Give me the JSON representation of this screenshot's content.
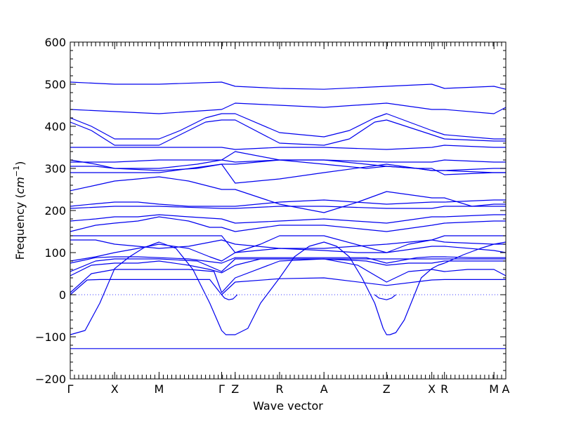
{
  "chart_data": {
    "type": "line",
    "title": "",
    "xlabel": "Wave vector",
    "ylabel": "Frequency (cm⁻¹)",
    "ylabel_text": "Frequency (",
    "ylabel_unit": "cm",
    "ylabel_exp": "−1",
    "ylabel_close": ")",
    "ylim": [
      -200,
      600
    ],
    "yticks": [
      -200,
      -100,
      0,
      100,
      200,
      300,
      400,
      500,
      600
    ],
    "ytick_labels": [
      "−200",
      "−100",
      "0",
      "100",
      "200",
      "300",
      "400",
      "500",
      "600"
    ],
    "xlim": [
      0,
      10.3
    ],
    "xticks": [
      {
        "x": 0.0,
        "label": "Γ"
      },
      {
        "x": 1.05,
        "label": "X"
      },
      {
        "x": 2.1,
        "label": "M"
      },
      {
        "x": 3.58,
        "label": "Γ"
      },
      {
        "x": 3.9,
        "label": "Z"
      },
      {
        "x": 4.95,
        "label": "R"
      },
      {
        "x": 6.0,
        "label": "A"
      },
      {
        "x": 7.48,
        "label": "Z"
      },
      {
        "x": 8.55,
        "label": "X"
      },
      {
        "x": 8.85,
        "label": "R"
      },
      {
        "x": 10.02,
        "label": "M"
      },
      {
        "x": 10.3,
        "label": "A"
      }
    ],
    "zero_line": true,
    "grid": false,
    "line_color": "#0000ee",
    "zero_line_color": "#3b3bff",
    "series": [
      {
        "x": [
          0,
          1.05,
          2.1,
          3.58,
          3.9,
          4.95,
          6.0,
          7.48,
          8.55,
          8.85,
          10.02,
          10.3
        ],
        "values": [
          -128,
          -128,
          -128,
          -128,
          -128,
          -128,
          -128,
          -128,
          -128,
          -128,
          -128,
          -128
        ]
      },
      {
        "x": [
          0,
          0.35,
          0.7,
          1.05,
          1.4,
          1.75,
          2.1,
          2.5,
          2.9,
          3.3,
          3.58,
          3.68,
          3.8,
          3.9,
          4.2,
          4.5,
          4.95,
          5.3,
          5.65,
          6.0,
          6.3,
          6.6,
          6.9,
          7.2,
          7.4,
          7.48,
          7.56,
          7.7,
          7.9,
          8.1,
          8.3,
          8.55,
          8.7,
          8.85,
          9.3,
          9.7,
          10.02,
          10.3
        ],
        "values": [
          -95,
          -85,
          -20,
          62,
          90,
          112,
          125,
          110,
          60,
          -20,
          -85,
          -95,
          -95,
          -95,
          -80,
          -20,
          40,
          90,
          115,
          125,
          115,
          90,
          40,
          -20,
          -80,
          -95,
          -95,
          -90,
          -60,
          -10,
          40,
          62,
          70,
          75,
          95,
          110,
          120,
          125
        ]
      },
      {
        "x": [
          0,
          0.4,
          0.7,
          1.05,
          1.4,
          1.75,
          2.1,
          2.5,
          2.9,
          3.3,
          3.58,
          3.9,
          4.95,
          6.0,
          7.48,
          8.55,
          8.85,
          10.02,
          10.3
        ],
        "values": [
          0,
          35,
          36,
          36,
          36,
          36,
          36,
          36,
          36,
          36,
          0,
          30,
          38,
          40,
          22,
          35,
          36,
          36,
          36
        ]
      },
      {
        "x": [
          3.58,
          3.65,
          3.75,
          3.85,
          3.9,
          3.95
        ],
        "values": [
          0,
          -8,
          -12,
          -10,
          -5,
          0
        ]
      },
      {
        "x": [
          7.2,
          7.3,
          7.48,
          7.6,
          7.7
        ],
        "values": [
          0,
          -8,
          -12,
          -8,
          0
        ]
      },
      {
        "x": [
          0,
          0.5,
          1.05,
          1.6,
          2.1,
          2.8,
          3.4,
          3.58,
          3.9,
          4.95,
          6.0,
          6.8,
          7.48,
          8.0,
          8.55,
          8.85,
          9.4,
          10.02,
          10.3
        ],
        "values": [
          5,
          50,
          60,
          60,
          60,
          60,
          55,
          5,
          40,
          80,
          85,
          70,
          30,
          55,
          60,
          55,
          60,
          60,
          45
        ]
      },
      {
        "x": [
          0,
          0.5,
          1.05,
          1.6,
          2.1,
          2.8,
          3.3,
          3.58,
          3.9,
          4.5,
          4.95,
          6.0,
          7.0,
          7.48,
          8.0,
          8.55,
          8.85,
          10.02,
          10.3
        ],
        "values": [
          45,
          70,
          75,
          75,
          80,
          70,
          60,
          52,
          70,
          85,
          85,
          85,
          80,
          70,
          75,
          75,
          80,
          80,
          80
        ]
      },
      {
        "x": [
          0,
          0.6,
          1.05,
          2.1,
          3.0,
          3.58,
          3.9,
          4.95,
          6.0,
          7.48,
          8.55,
          8.85,
          10.02,
          10.3
        ],
        "values": [
          55,
          80,
          85,
          85,
          80,
          55,
          85,
          85,
          85,
          85,
          85,
          85,
          85,
          85
        ]
      },
      {
        "x": [
          0,
          0.6,
          1.05,
          1.6,
          2.1,
          2.8,
          3.58,
          3.9,
          4.95,
          6.0,
          7.0,
          7.48,
          8.2,
          8.55,
          8.85,
          9.5,
          10.02,
          10.3
        ],
        "values": [
          75,
          88,
          90,
          90,
          88,
          85,
          75,
          88,
          88,
          88,
          88,
          75,
          88,
          90,
          90,
          88,
          88,
          88
        ]
      },
      {
        "x": [
          0,
          0.6,
          1.05,
          1.6,
          2.1,
          2.8,
          3.3,
          3.58,
          3.9,
          4.5,
          4.95,
          6.0,
          7.48,
          8.0,
          8.55,
          8.85,
          10.02,
          10.3
        ],
        "values": [
          80,
          90,
          100,
          110,
          120,
          110,
          90,
          80,
          100,
          120,
          140,
          140,
          100,
          120,
          130,
          140,
          140,
          140
        ]
      },
      {
        "x": [
          0,
          0.6,
          1.05,
          1.6,
          2.1,
          2.8,
          3.58,
          3.9,
          4.95,
          6.0,
          7.48,
          8.55,
          8.85,
          10.02,
          10.3
        ],
        "values": [
          130,
          130,
          120,
          115,
          110,
          115,
          130,
          120,
          110,
          110,
          120,
          130,
          125,
          120,
          120
        ]
      },
      {
        "x": [
          0,
          0.6,
          1.05,
          1.6,
          2.1,
          2.8,
          3.3,
          3.58,
          3.9,
          4.95,
          6.0,
          6.8,
          7.48,
          8.2,
          8.55,
          8.85,
          10.02,
          10.3
        ],
        "values": [
          140,
          140,
          140,
          140,
          140,
          140,
          140,
          140,
          100,
          110,
          105,
          100,
          100,
          110,
          115,
          115,
          105,
          100
        ]
      },
      {
        "x": [
          0,
          0.6,
          1.05,
          1.6,
          2.1,
          2.8,
          3.3,
          3.58,
          3.9,
          4.95,
          6.0,
          7.48,
          8.55,
          8.85,
          10.02,
          10.3
        ],
        "values": [
          150,
          165,
          170,
          175,
          185,
          175,
          160,
          160,
          150,
          165,
          165,
          150,
          165,
          170,
          175,
          175
        ]
      },
      {
        "x": [
          0,
          0.6,
          1.05,
          1.6,
          2.1,
          2.8,
          3.58,
          3.9,
          4.95,
          6.0,
          7.48,
          8.55,
          8.85,
          10.02,
          10.3
        ],
        "values": [
          175,
          180,
          185,
          185,
          190,
          185,
          180,
          170,
          175,
          180,
          170,
          185,
          185,
          190,
          190
        ]
      },
      {
        "x": [
          0,
          1.05,
          2.1,
          3.58,
          3.9,
          4.95,
          6.0,
          7.48,
          8.55,
          8.85,
          10.02,
          10.3
        ],
        "values": [
          205,
          210,
          210,
          205,
          205,
          210,
          210,
          205,
          205,
          210,
          210,
          210
        ]
      },
      {
        "x": [
          0,
          0.5,
          1.05,
          1.6,
          2.1,
          2.8,
          3.58,
          3.9,
          4.95,
          6.0,
          7.48,
          8.55,
          8.85,
          10.02,
          10.3
        ],
        "values": [
          210,
          215,
          220,
          220,
          215,
          210,
          210,
          210,
          220,
          225,
          215,
          220,
          220,
          225,
          225
        ]
      },
      {
        "x": [
          0,
          0.6,
          1.05,
          1.6,
          2.1,
          2.8,
          3.58,
          3.9,
          4.5,
          4.95,
          6.0,
          6.8,
          7.48,
          8.2,
          8.55,
          8.85,
          9.5,
          10.02,
          10.3
        ],
        "values": [
          247,
          260,
          270,
          275,
          280,
          270,
          250,
          250,
          230,
          215,
          195,
          220,
          245,
          235,
          230,
          230,
          210,
          215,
          215
        ]
      },
      {
        "x": [
          0,
          1.05,
          2.1,
          3.58,
          3.9,
          4.95,
          6.0,
          7.48,
          8.55,
          8.85,
          10.02,
          10.3
        ],
        "values": [
          290,
          290,
          290,
          310,
          265,
          275,
          290,
          310,
          295,
          295,
          290,
          290
        ]
      },
      {
        "x": [
          0,
          0.6,
          1.05,
          2.1,
          3.0,
          3.58,
          3.9,
          4.95,
          6.0,
          7.0,
          7.48,
          8.2,
          8.55,
          8.85,
          10.02,
          10.3
        ],
        "values": [
          305,
          305,
          300,
          300,
          310,
          320,
          340,
          320,
          310,
          300,
          305,
          300,
          295,
          295,
          300,
          300
        ]
      },
      {
        "x": [
          0,
          1.05,
          2.1,
          3.58,
          3.9,
          4.95,
          6.0,
          7.48,
          8.55,
          8.85,
          10.02,
          10.3
        ],
        "values": [
          315,
          315,
          320,
          320,
          315,
          320,
          320,
          315,
          315,
          320,
          315,
          315
        ]
      },
      {
        "x": [
          0,
          0.6,
          1.05,
          2.1,
          3.0,
          3.58,
          3.9,
          4.95,
          6.0,
          7.0,
          7.48,
          8.2,
          8.55,
          8.85,
          10.02,
          10.3
        ],
        "values": [
          320,
          310,
          300,
          295,
          300,
          310,
          310,
          320,
          320,
          310,
          305,
          300,
          300,
          285,
          290,
          290
        ]
      },
      {
        "x": [
          0,
          1.05,
          2.1,
          3.58,
          3.9,
          4.95,
          6.0,
          7.48,
          8.55,
          8.85,
          10.02,
          10.3
        ],
        "values": [
          350,
          350,
          350,
          350,
          345,
          350,
          350,
          345,
          350,
          355,
          350,
          350
        ]
      },
      {
        "x": [
          0,
          0.5,
          1.05,
          1.6,
          2.1,
          2.6,
          3.2,
          3.58,
          3.9,
          4.95,
          6.0,
          6.6,
          7.2,
          7.48,
          8.55,
          8.85,
          10.02,
          10.3
        ],
        "values": [
          410,
          390,
          355,
          355,
          355,
          380,
          410,
          415,
          415,
          360,
          355,
          370,
          410,
          415,
          380,
          370,
          365,
          365
        ]
      },
      {
        "x": [
          0,
          0.5,
          1.05,
          1.6,
          2.1,
          2.6,
          3.2,
          3.58,
          3.9,
          4.95,
          6.0,
          6.6,
          7.2,
          7.48,
          8.55,
          8.85,
          10.02,
          10.3
        ],
        "values": [
          420,
          400,
          370,
          370,
          370,
          390,
          420,
          430,
          430,
          385,
          375,
          390,
          420,
          430,
          390,
          380,
          370,
          370
        ]
      },
      {
        "x": [
          0,
          1.05,
          2.1,
          3.58,
          3.9,
          4.95,
          6.0,
          7.48,
          8.55,
          8.85,
          10.02,
          10.3
        ],
        "values": [
          440,
          435,
          430,
          440,
          455,
          450,
          445,
          455,
          440,
          440,
          430,
          445
        ]
      },
      {
        "x": [
          0,
          1.05,
          2.1,
          3.58,
          3.9,
          4.95,
          6.0,
          7.48,
          8.55,
          8.85,
          10.02,
          10.3
        ],
        "values": [
          505,
          500,
          500,
          505,
          495,
          490,
          488,
          495,
          500,
          490,
          495,
          488
        ]
      }
    ]
  }
}
